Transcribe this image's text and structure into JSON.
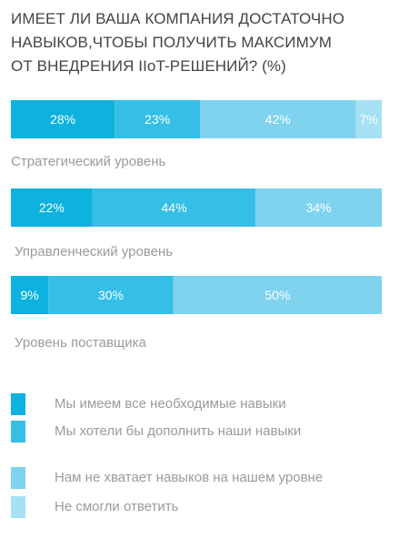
{
  "title_lines": [
    "ИМЕЕТ ЛИ ВАША КОМПАНИЯ ДОСТАТОЧНО",
    "НАВЫКОВ,ЧТОБЫ ПОЛУЧИТЬ МАКСИМУМ",
    "ОТ ВНЕДРЕНИЯ IIoT-РЕШЕНИЙ? (%)"
  ],
  "colors": [
    "#0db2de",
    "#36bfe6",
    "#7fd3ee",
    "#a6e0f4"
  ],
  "chart_data": {
    "type": "bar",
    "orientation": "horizontal",
    "stacked": true,
    "categories": [
      "Стратегический уровень",
      "Управленческий уровень",
      "Уровень поставщика"
    ],
    "series": [
      {
        "name": "Мы имеем все необходимые навыки",
        "values": [
          28,
          22,
          9
        ],
        "labels": [
          "28%",
          "22%",
          "9%"
        ]
      },
      {
        "name": "Мы хотели бы дополнить наши навыки",
        "values": [
          23,
          44,
          30
        ],
        "labels": [
          "23%",
          "44%",
          "30%"
        ]
      },
      {
        "name": "Нам не хватает навыков на нашем уровне",
        "values": [
          42,
          34,
          50
        ],
        "labels": [
          "42%",
          "34%",
          "50%"
        ]
      },
      {
        "name": "Не смогли ответить",
        "values": [
          7,
          0,
          0
        ],
        "labels": [
          "7%",
          "",
          ""
        ]
      }
    ],
    "legend_position": "bottom"
  },
  "legend": [
    "Мы имеем все необходимые навыки",
    "Мы хотели бы дополнить наши навыки",
    "Нам не хватает навыков на нашем уровне",
    "Не смогли ответить"
  ]
}
